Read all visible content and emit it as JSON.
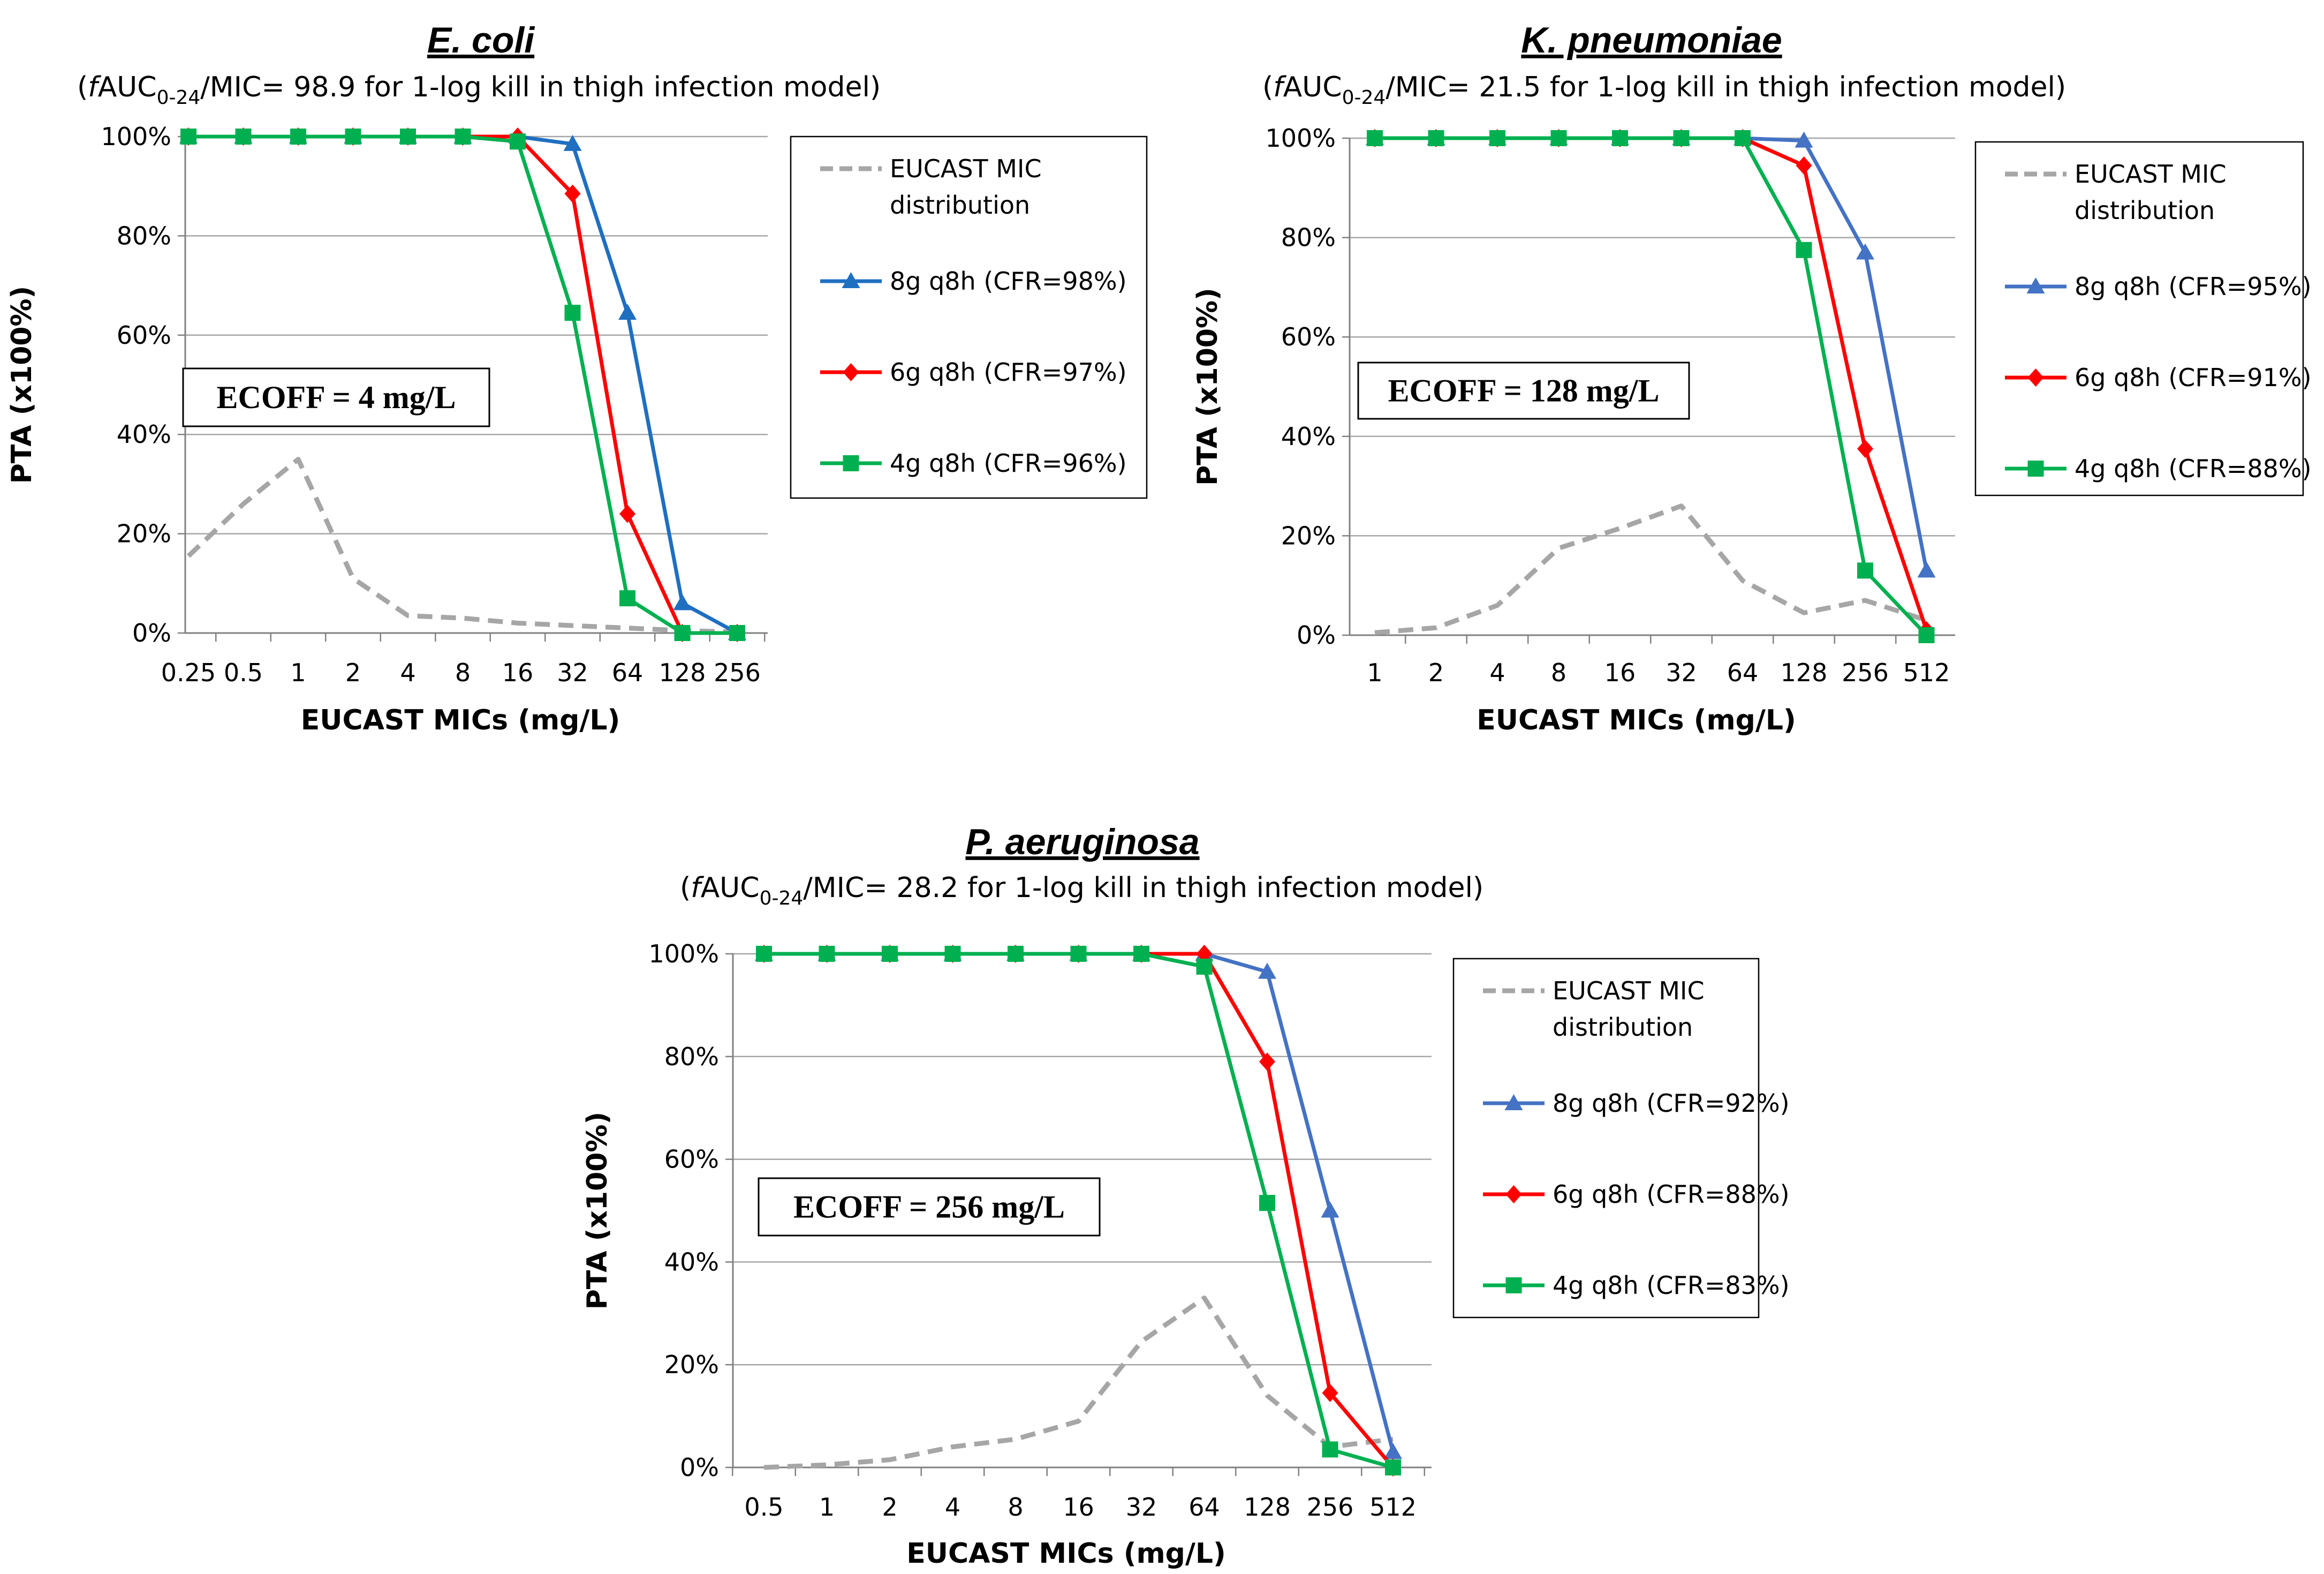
{
  "figure": {
    "charts": [
      {
        "title": "E. coli",
        "subtitle": {
          "open": "(",
          "f": "f",
          "auc": "AUC",
          "sub": "0-24",
          "rest": "/MIC= 98.9 for 1-log kill in thigh infection model)"
        },
        "ecoff": "ECOFF = 4 mg/L"
      },
      {
        "title": "K. pneumoniae",
        "subtitle": {
          "open": "(",
          "f": "f",
          "auc": "AUC",
          "sub": "0-24",
          "rest": "/MIC= 21.5 for 1-log kill in thigh infection model)"
        },
        "ecoff": "ECOFF = 128 mg/L"
      },
      {
        "title": "P. aeruginosa",
        "subtitle": {
          "open": "(",
          "f": "f",
          "auc": "AUC",
          "sub": "0-24",
          "rest": "/MIC= 28.2 for 1-log kill in thigh infection model)"
        },
        "ecoff": "ECOFF = 256 mg/L"
      }
    ]
  },
  "chart_data": [
    {
      "type": "line",
      "title": "E. coli",
      "xlabel": "EUCAST MICs (mg/L)",
      "ylabel": "PTA (x100%)",
      "ylim": [
        0,
        100
      ],
      "yticks": [
        "0%",
        "20%",
        "40%",
        "60%",
        "80%",
        "100%"
      ],
      "categories": [
        "0.25",
        "0.5",
        "1",
        "2",
        "4",
        "8",
        "16",
        "32",
        "64",
        "128",
        "256"
      ],
      "series": [
        {
          "name": "EUCAST MIC distribution",
          "color": "#A6A6A6",
          "marker": "none",
          "dashed": true,
          "values": [
            15.5,
            26,
            35,
            11,
            3.5,
            3,
            2,
            1.5,
            1,
            0.5,
            0.2
          ]
        },
        {
          "name": "8g q8h (CFR=98%)",
          "color": "#1F6FC1",
          "marker": "triangle",
          "values": [
            100,
            100,
            100,
            100,
            100,
            100,
            100,
            98.5,
            64.5,
            6,
            0
          ]
        },
        {
          "name": "6g q8h (CFR=97%)",
          "color": "#FF0000",
          "marker": "diamond",
          "values": [
            100,
            100,
            100,
            100,
            100,
            100,
            100,
            88.5,
            24,
            0,
            0
          ]
        },
        {
          "name": "4g q8h (CFR=96%)",
          "color": "#00B050",
          "marker": "square",
          "values": [
            100,
            100,
            100,
            100,
            100,
            100,
            99,
            64.5,
            7,
            0,
            0
          ]
        }
      ]
    },
    {
      "type": "line",
      "title": "K. pneumoniae",
      "xlabel": "EUCAST MICs (mg/L)",
      "ylabel": "PTA (x100%)",
      "ylim": [
        0,
        100
      ],
      "yticks": [
        "0%",
        "20%",
        "40%",
        "60%",
        "80%",
        "100%"
      ],
      "categories": [
        "1",
        "2",
        "4",
        "8",
        "16",
        "32",
        "64",
        "128",
        "256",
        "512"
      ],
      "series": [
        {
          "name": "EUCAST MIC distribution",
          "color": "#A6A6A6",
          "marker": "none",
          "dashed": true,
          "values": [
            0.5,
            1.5,
            6,
            17.5,
            21.5,
            26,
            11,
            4.5,
            7,
            3
          ]
        },
        {
          "name": "8g q8h (CFR=95%)",
          "color": "#4472C4",
          "marker": "triangle",
          "values": [
            100,
            100,
            100,
            100,
            100,
            100,
            100,
            99.5,
            77,
            13
          ]
        },
        {
          "name": "6g q8h (CFR=91%)",
          "color": "#FF0000",
          "marker": "diamond",
          "values": [
            100,
            100,
            100,
            100,
            100,
            100,
            100,
            94.5,
            37.5,
            1
          ]
        },
        {
          "name": "4g q8h (CFR=88%)",
          "color": "#00B050",
          "marker": "square",
          "values": [
            100,
            100,
            100,
            100,
            100,
            100,
            100,
            77.5,
            13,
            0
          ]
        }
      ]
    },
    {
      "type": "line",
      "title": "P. aeruginosa",
      "xlabel": "EUCAST MICs (mg/L)",
      "ylabel": "PTA (x100%)",
      "ylim": [
        0,
        100
      ],
      "yticks": [
        "0%",
        "20%",
        "40%",
        "60%",
        "80%",
        "100%"
      ],
      "categories": [
        "0.5",
        "1",
        "2",
        "4",
        "8",
        "16",
        "32",
        "64",
        "128",
        "256",
        "512"
      ],
      "series": [
        {
          "name": "EUCAST MIC distribution",
          "color": "#A6A6A6",
          "marker": "none",
          "dashed": true,
          "values": [
            0,
            0.5,
            1.5,
            4,
            5.5,
            9,
            24.5,
            33,
            14,
            4,
            5.5
          ]
        },
        {
          "name": "8g q8h (CFR=92%)",
          "color": "#4472C4",
          "marker": "triangle",
          "values": [
            100,
            100,
            100,
            100,
            100,
            100,
            100,
            100,
            96.5,
            50,
            3
          ]
        },
        {
          "name": "6g q8h (CFR=88%)",
          "color": "#FF0000",
          "marker": "diamond",
          "values": [
            100,
            100,
            100,
            100,
            100,
            100,
            100,
            100,
            79,
            14.5,
            0
          ]
        },
        {
          "name": "4g q8h (CFR=83%)",
          "color": "#00B050",
          "marker": "square",
          "values": [
            100,
            100,
            100,
            100,
            100,
            100,
            100,
            97.5,
            51.5,
            3.5,
            0
          ]
        }
      ]
    }
  ]
}
